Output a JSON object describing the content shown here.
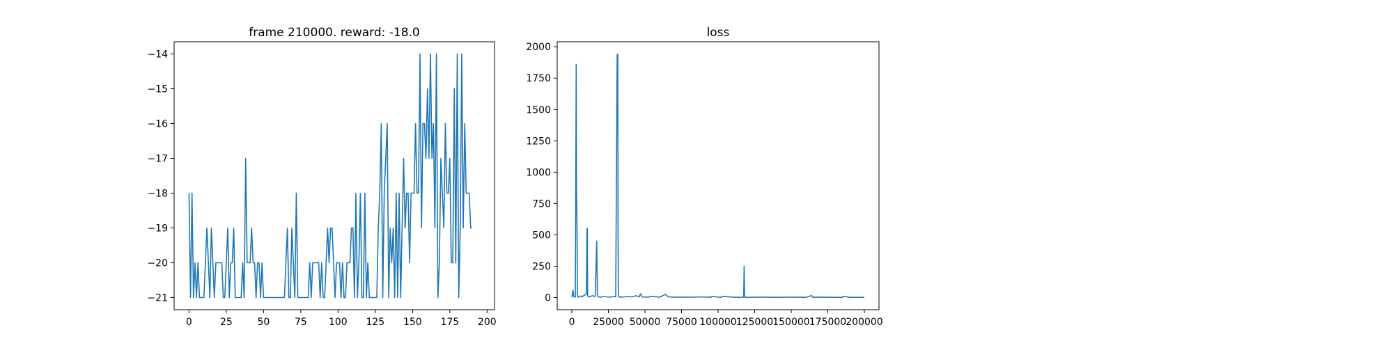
{
  "chart_data": [
    {
      "type": "line",
      "title": "frame 210000. reward: -18.0",
      "xlabel": "",
      "ylabel": "",
      "xlim": [
        -10,
        205
      ],
      "ylim": [
        -21.35,
        -13.65
      ],
      "xticks": [
        0,
        25,
        50,
        75,
        100,
        125,
        150,
        175,
        200
      ],
      "yticks": [
        -21,
        -20,
        -19,
        -18,
        -17,
        -16,
        -15,
        -14
      ],
      "grid": false,
      "color": "#1f77b4",
      "series": [
        {
          "values": [
            -18,
            -21,
            -18,
            -21,
            -20,
            -21,
            -20,
            -21,
            -21,
            -21,
            -21,
            -20,
            -19,
            -20,
            -21,
            -19,
            -20,
            -21,
            -20,
            -20,
            -20,
            -20,
            -20,
            -21,
            -21,
            -20,
            -19,
            -21,
            -20,
            -20,
            -19,
            -21,
            -21,
            -21,
            -21,
            -21,
            -20,
            -21,
            -17,
            -20,
            -20,
            -20,
            -19,
            -20,
            -20,
            -21,
            -20,
            -20,
            -21,
            -20,
            -21,
            -21,
            -21,
            -21,
            -21,
            -21,
            -21,
            -21,
            -21,
            -21,
            -21,
            -21,
            -21,
            -21,
            -21,
            -20,
            -19,
            -21,
            -21,
            -19,
            -20,
            -21,
            -18,
            -21,
            -21,
            -21,
            -21,
            -21,
            -21,
            -21,
            -21,
            -20,
            -21,
            -20,
            -20,
            -20,
            -20,
            -20,
            -21,
            -20,
            -21,
            -21,
            -20,
            -19,
            -20,
            -19,
            -19,
            -20,
            -21,
            -20,
            -20,
            -20,
            -21,
            -20,
            -21,
            -21,
            -20,
            -20,
            -20,
            -19,
            -19,
            -21,
            -18,
            -21,
            -20,
            -18,
            -21,
            -21,
            -18,
            -21,
            -20,
            -21,
            -21,
            -21,
            -21,
            -21,
            -21,
            -19,
            -18,
            -16,
            -21,
            -18,
            -17,
            -16,
            -21,
            -19,
            -20,
            -19,
            -21,
            -18,
            -21,
            -18,
            -21,
            -19,
            -17,
            -19,
            -18,
            -18,
            -20,
            -18,
            -18,
            -18,
            -16,
            -18,
            -18,
            -14,
            -19,
            -16,
            -16,
            -17,
            -15,
            -17,
            -14,
            -17,
            -16,
            -19,
            -14,
            -21,
            -20,
            -17,
            -18,
            -19,
            -16,
            -18,
            -18,
            -17,
            -20,
            -20,
            -15,
            -20,
            -14,
            -21,
            -19,
            -14,
            -19,
            -16,
            -18,
            -18,
            -18,
            -19,
            -19
          ]
        }
      ]
    },
    {
      "type": "line",
      "title": "loss",
      "xlabel": "",
      "ylabel": "",
      "xlim": [
        -10000,
        210000
      ],
      "ylim": [
        -97,
        2040
      ],
      "xticks": [
        0,
        25000,
        50000,
        75000,
        100000,
        125000,
        150000,
        175000,
        200000
      ],
      "yticks": [
        0,
        250,
        500,
        750,
        1000,
        1250,
        1500,
        1750,
        2000
      ],
      "grid": false,
      "color": "#1f77b4",
      "series": [
        {
          "x": [
            0,
            600,
            800,
            1200,
            2000,
            2400,
            3000,
            3200,
            3600,
            3800,
            4000,
            4200,
            4400,
            5000,
            6000,
            7000,
            8000,
            9000,
            10000,
            10400,
            10600,
            10800,
            11000,
            12000,
            14000,
            16000,
            17000,
            17500,
            17800,
            18000,
            20000,
            22000,
            24000,
            26000,
            28000,
            30000,
            31000,
            31200,
            31400,
            31600,
            31800,
            32000,
            32200,
            32600,
            33000,
            36000,
            38000,
            40000,
            42000,
            44000,
            46000,
            47000,
            48000,
            52000,
            55000,
            60000,
            64000,
            66000,
            70000,
            80000,
            90000,
            95000,
            96000,
            100000,
            102000,
            103000,
            110000,
            115000,
            117500,
            117800,
            118100,
            119000,
            130000,
            140000,
            150000,
            160000,
            164000,
            165000,
            170000,
            180000,
            185000,
            186000,
            190000,
            200000
          ],
          "y": [
            2,
            40,
            60,
            10,
            5,
            3,
            1860,
            850,
            500,
            30,
            10,
            5,
            3,
            8,
            12,
            5,
            15,
            20,
            30,
            550,
            550,
            20,
            10,
            5,
            15,
            8,
            450,
            20,
            10,
            5,
            3,
            10,
            5,
            3,
            8,
            5,
            1940,
            1940,
            1940,
            600,
            30,
            10,
            5,
            8,
            3,
            5,
            10,
            5,
            8,
            15,
            5,
            30,
            5,
            3,
            10,
            3,
            25,
            5,
            3,
            3,
            5,
            2,
            10,
            3,
            2,
            10,
            3,
            2,
            3,
            250,
            5,
            2,
            3,
            2,
            3,
            2,
            15,
            2,
            3,
            2,
            2,
            10,
            2,
            2
          ]
        }
      ]
    }
  ]
}
